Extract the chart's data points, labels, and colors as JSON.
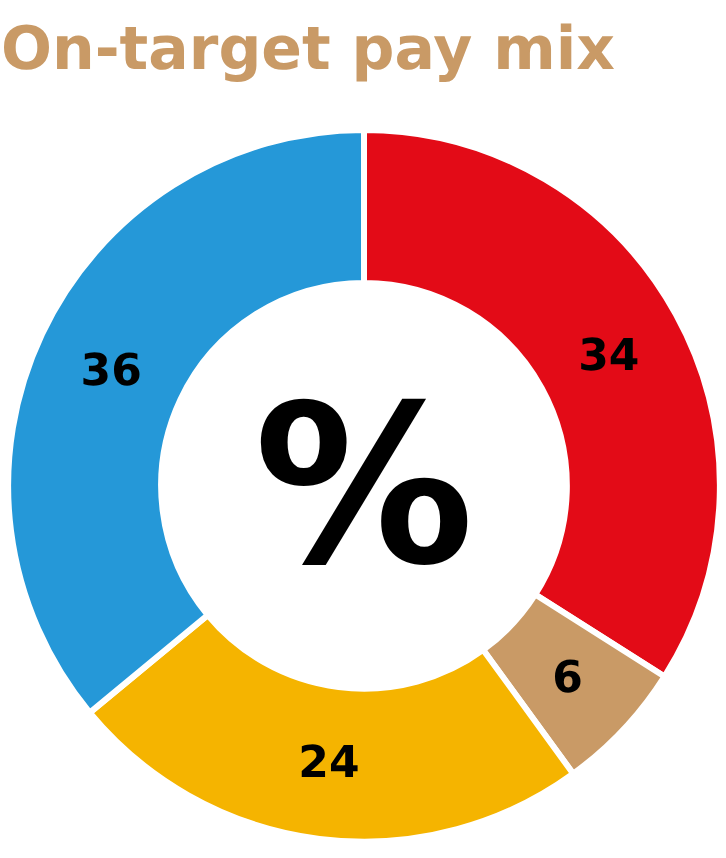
{
  "chart_data": {
    "type": "donut",
    "title": "On-target pay mix",
    "categories": [
      null,
      null,
      null,
      null
    ],
    "values": [
      34,
      6,
      24,
      36
    ],
    "colors": [
      "#e30b17",
      "#c99a66",
      "#f5b400",
      "#2598d8"
    ],
    "data_labels": true,
    "annotations": [
      "%"
    ]
  }
}
